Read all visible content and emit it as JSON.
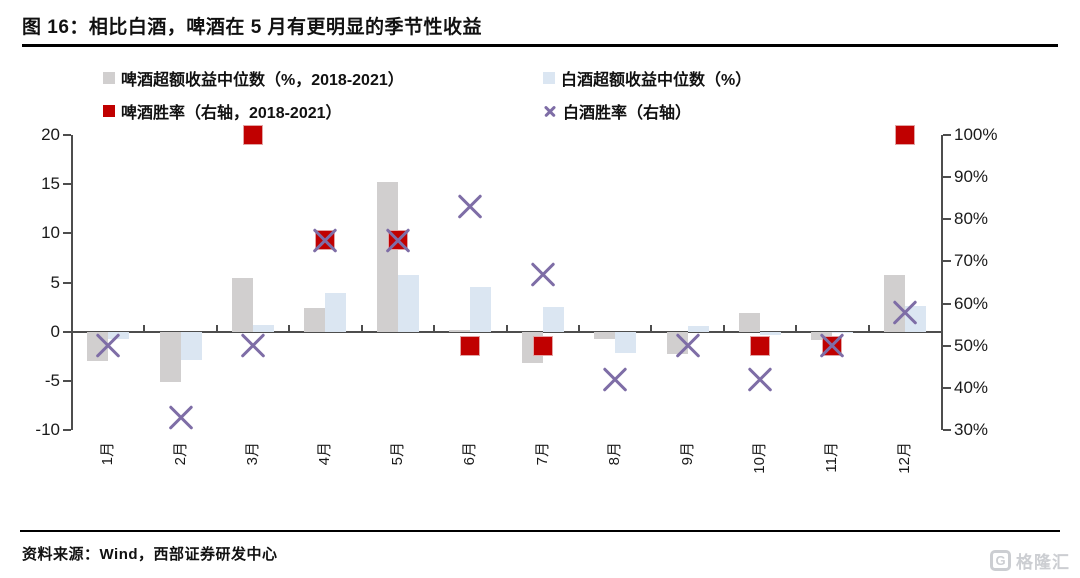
{
  "figure": {
    "title": "图 16：相比白酒，啤酒在 5 月有更明显的季节性收益",
    "source_note": "资料来源：Wind，西部证券研发中心",
    "watermark_icon": "G",
    "watermark": "格隆汇"
  },
  "legend": {
    "items": [
      {
        "label": "啤酒超额收益中位数（%，2018-2021）",
        "marker": "square",
        "color": "#d1cfcf"
      },
      {
        "label": "白酒超额收益中位数（%）",
        "marker": "square",
        "color": "#dbe6f2"
      },
      {
        "label": "啤酒胜率（右轴，2018-2021）",
        "marker": "square",
        "color": "#c00000"
      },
      {
        "label": "白酒胜率（右轴）",
        "marker": "x",
        "color": "#7e6da6"
      }
    ]
  },
  "chart_data": {
    "type": "bar",
    "subtype": "dual-axis bars with scatter markers",
    "categories": [
      "1月",
      "2月",
      "3月",
      "4月",
      "5月",
      "6月",
      "7月",
      "8月",
      "9月",
      "10月",
      "11月",
      "12月"
    ],
    "series": [
      {
        "name": "啤酒超额收益中位数（%，2018-2021）",
        "kind": "bar",
        "axis": "left",
        "color": "#d1cfcf",
        "values": [
          -3.0,
          -5.1,
          5.5,
          2.4,
          15.2,
          0.2,
          -3.2,
          -0.7,
          -2.3,
          1.9,
          -0.8,
          5.8
        ]
      },
      {
        "name": "白酒超额收益中位数（%）",
        "kind": "bar",
        "axis": "left",
        "color": "#dbe6f2",
        "values": [
          -0.7,
          -2.9,
          0.7,
          3.9,
          5.8,
          4.5,
          2.5,
          -2.2,
          0.6,
          -0.3,
          -0.1,
          2.6
        ]
      },
      {
        "name": "啤酒胜率（右轴，2018-2021）",
        "kind": "square-marker",
        "axis": "right",
        "color": "#c00000",
        "values": [
          null,
          null,
          100,
          75,
          75,
          50,
          50,
          null,
          null,
          50,
          50,
          100
        ]
      },
      {
        "name": "白酒胜率（右轴）",
        "kind": "x-marker",
        "axis": "right",
        "color": "#7e6da6",
        "values": [
          50,
          33,
          50,
          75,
          75,
          83,
          67,
          42,
          50,
          42,
          50,
          58
        ]
      }
    ],
    "left_axis": {
      "ticks": [
        20,
        15,
        10,
        5,
        0,
        -5,
        -10
      ],
      "range": [
        -10,
        20
      ]
    },
    "right_axis": {
      "ticks": [
        "100%",
        "90%",
        "80%",
        "70%",
        "60%",
        "50%",
        "40%",
        "30%"
      ],
      "range": [
        30,
        100
      ]
    },
    "grid": false,
    "legend_position": "top",
    "title": "相比白酒，啤酒在 5 月有更明显的季节性收益"
  }
}
